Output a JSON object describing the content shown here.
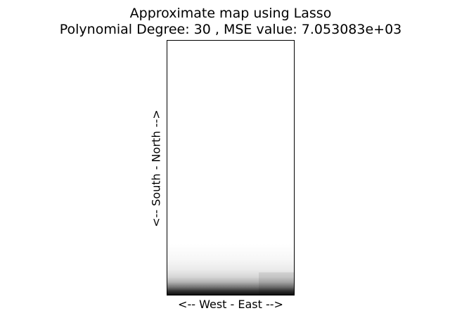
{
  "chart_data": {
    "type": "heatmap",
    "title": "Approximate map using Lasso",
    "subtitle": "Polynomial Degree: 30 , MSE value: 7.053083e+03",
    "xlabel": "<-- West - East -->",
    "ylabel": "<-- South - North -->",
    "colormap": "gray_r",
    "grid": false,
    "colors": {
      "background": "#ffffff",
      "frame": "#000000",
      "high": "#000000",
      "low": "#ffffff"
    },
    "intensity_profile": {
      "description_axis": "north_to_south_fraction",
      "fraction": [
        0.0,
        0.8,
        0.86,
        0.9,
        0.93,
        0.95,
        0.97,
        0.985,
        1.0
      ],
      "darkness": [
        0.0,
        0.0,
        0.03,
        0.08,
        0.16,
        0.3,
        0.55,
        0.8,
        0.95
      ]
    }
  }
}
